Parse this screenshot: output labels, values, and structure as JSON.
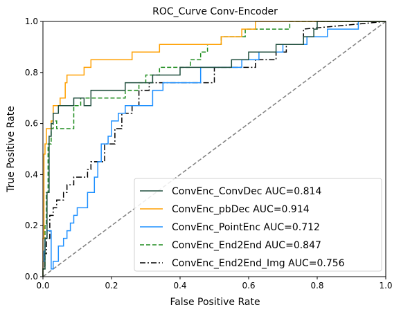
{
  "chart_data": {
    "type": "line",
    "title": "ROC_Curve Conv-Encoder",
    "xlabel": "False Positive Rate",
    "ylabel": "True Positive Rate",
    "xlim": [
      0.0,
      1.0
    ],
    "ylim": [
      0.0,
      1.0
    ],
    "xticks": [
      "0.0",
      "0.2",
      "0.4",
      "0.6",
      "0.8",
      "1.0"
    ],
    "yticks": [
      "0.0",
      "0.2",
      "0.4",
      "0.6",
      "0.8",
      "1.0"
    ],
    "grid": false,
    "legend_position": "lower-right",
    "series": [
      {
        "name": "ConvEnc_ConvDec AUC=0.814",
        "color": "#1f4e3d",
        "dash": "solid",
        "points": [
          [
            0,
            0
          ],
          [
            0,
            0.03
          ],
          [
            0.006,
            0.03
          ],
          [
            0.006,
            0.15
          ],
          [
            0.012,
            0.15
          ],
          [
            0.012,
            0.33
          ],
          [
            0.018,
            0.33
          ],
          [
            0.018,
            0.55
          ],
          [
            0.024,
            0.55
          ],
          [
            0.024,
            0.6
          ],
          [
            0.03,
            0.6
          ],
          [
            0.03,
            0.64
          ],
          [
            0.045,
            0.64
          ],
          [
            0.045,
            0.67
          ],
          [
            0.09,
            0.67
          ],
          [
            0.09,
            0.7
          ],
          [
            0.12,
            0.7
          ],
          [
            0.12,
            0.67
          ],
          [
            0.14,
            0.67
          ],
          [
            0.14,
            0.73
          ],
          [
            0.24,
            0.73
          ],
          [
            0.24,
            0.76
          ],
          [
            0.32,
            0.76
          ],
          [
            0.32,
            0.79
          ],
          [
            0.4,
            0.79
          ],
          [
            0.4,
            0.82
          ],
          [
            0.55,
            0.82
          ],
          [
            0.55,
            0.85
          ],
          [
            0.6,
            0.85
          ],
          [
            0.6,
            0.88
          ],
          [
            0.68,
            0.88
          ],
          [
            0.68,
            0.91
          ],
          [
            0.76,
            0.91
          ],
          [
            0.76,
            0.94
          ],
          [
            0.79,
            0.94
          ],
          [
            0.79,
            0.97
          ],
          [
            0.8,
            0.97
          ],
          [
            0.8,
            1.0
          ],
          [
            1.0,
            1.0
          ]
        ]
      },
      {
        "name": "ConvEnc_pbDec AUC=0.914",
        "color": "#ff9f00",
        "dash": "solid",
        "points": [
          [
            0,
            0
          ],
          [
            0,
            0.15
          ],
          [
            0.003,
            0.15
          ],
          [
            0.003,
            0.48
          ],
          [
            0.006,
            0.48
          ],
          [
            0.006,
            0.52
          ],
          [
            0.01,
            0.52
          ],
          [
            0.01,
            0.58
          ],
          [
            0.024,
            0.58
          ],
          [
            0.024,
            0.61
          ],
          [
            0.03,
            0.61
          ],
          [
            0.03,
            0.67
          ],
          [
            0.05,
            0.67
          ],
          [
            0.05,
            0.7
          ],
          [
            0.065,
            0.7
          ],
          [
            0.065,
            0.76
          ],
          [
            0.07,
            0.76
          ],
          [
            0.07,
            0.79
          ],
          [
            0.12,
            0.79
          ],
          [
            0.12,
            0.82
          ],
          [
            0.14,
            0.82
          ],
          [
            0.14,
            0.85
          ],
          [
            0.26,
            0.85
          ],
          [
            0.26,
            0.88
          ],
          [
            0.34,
            0.88
          ],
          [
            0.34,
            0.91
          ],
          [
            0.52,
            0.91
          ],
          [
            0.52,
            0.94
          ],
          [
            0.58,
            0.94
          ],
          [
            0.58,
            0.97
          ],
          [
            0.62,
            0.97
          ],
          [
            0.62,
            1.0
          ],
          [
            1.0,
            1.0
          ]
        ]
      },
      {
        "name": "ConvEnc_PointEnc AUC=0.712",
        "color": "#1e90ff",
        "dash": "solid",
        "points": [
          [
            0,
            0
          ],
          [
            0,
            0.06
          ],
          [
            0.003,
            0.06
          ],
          [
            0.003,
            0.1
          ],
          [
            0.006,
            0.1
          ],
          [
            0.006,
            0.15
          ],
          [
            0.012,
            0.15
          ],
          [
            0.012,
            0.18
          ],
          [
            0.024,
            0.18
          ],
          [
            0.024,
            0.03
          ],
          [
            0.03,
            0.03
          ],
          [
            0.03,
            0.06
          ],
          [
            0.045,
            0.06
          ],
          [
            0.045,
            0.12
          ],
          [
            0.06,
            0.12
          ],
          [
            0.06,
            0.15
          ],
          [
            0.07,
            0.15
          ],
          [
            0.07,
            0.18
          ],
          [
            0.08,
            0.18
          ],
          [
            0.08,
            0.21
          ],
          [
            0.09,
            0.21
          ],
          [
            0.09,
            0.24
          ],
          [
            0.1,
            0.24
          ],
          [
            0.1,
            0.27
          ],
          [
            0.13,
            0.27
          ],
          [
            0.13,
            0.33
          ],
          [
            0.15,
            0.33
          ],
          [
            0.15,
            0.39
          ],
          [
            0.16,
            0.39
          ],
          [
            0.16,
            0.45
          ],
          [
            0.17,
            0.45
          ],
          [
            0.17,
            0.52
          ],
          [
            0.19,
            0.52
          ],
          [
            0.19,
            0.55
          ],
          [
            0.2,
            0.55
          ],
          [
            0.2,
            0.61
          ],
          [
            0.22,
            0.61
          ],
          [
            0.22,
            0.64
          ],
          [
            0.24,
            0.64
          ],
          [
            0.24,
            0.67
          ],
          [
            0.32,
            0.67
          ],
          [
            0.32,
            0.73
          ],
          [
            0.35,
            0.73
          ],
          [
            0.35,
            0.76
          ],
          [
            0.46,
            0.76
          ],
          [
            0.46,
            0.82
          ],
          [
            0.58,
            0.82
          ],
          [
            0.58,
            0.85
          ],
          [
            0.63,
            0.85
          ],
          [
            0.63,
            0.88
          ],
          [
            0.7,
            0.88
          ],
          [
            0.7,
            0.91
          ],
          [
            0.77,
            0.91
          ],
          [
            0.77,
            0.94
          ],
          [
            0.83,
            0.94
          ],
          [
            0.83,
            0.97
          ],
          [
            0.92,
            0.97
          ],
          [
            0.92,
            1.0
          ],
          [
            1.0,
            1.0
          ]
        ]
      },
      {
        "name": "ConvEnc_End2End AUC=0.847",
        "color": "#1e8c1e",
        "dash": "dashed",
        "points": [
          [
            0,
            0
          ],
          [
            0,
            0.03
          ],
          [
            0.006,
            0.03
          ],
          [
            0.006,
            0.2
          ],
          [
            0.01,
            0.2
          ],
          [
            0.01,
            0.33
          ],
          [
            0.015,
            0.33
          ],
          [
            0.015,
            0.52
          ],
          [
            0.024,
            0.52
          ],
          [
            0.024,
            0.58
          ],
          [
            0.03,
            0.58
          ],
          [
            0.03,
            0.61
          ],
          [
            0.04,
            0.61
          ],
          [
            0.04,
            0.58
          ],
          [
            0.09,
            0.58
          ],
          [
            0.09,
            0.67
          ],
          [
            0.11,
            0.67
          ],
          [
            0.11,
            0.7
          ],
          [
            0.24,
            0.7
          ],
          [
            0.24,
            0.73
          ],
          [
            0.28,
            0.73
          ],
          [
            0.28,
            0.76
          ],
          [
            0.3,
            0.76
          ],
          [
            0.3,
            0.79
          ],
          [
            0.34,
            0.79
          ],
          [
            0.34,
            0.82
          ],
          [
            0.43,
            0.82
          ],
          [
            0.43,
            0.85
          ],
          [
            0.46,
            0.85
          ],
          [
            0.46,
            0.88
          ],
          [
            0.48,
            0.88
          ],
          [
            0.48,
            0.91
          ],
          [
            0.52,
            0.91
          ],
          [
            0.52,
            0.94
          ],
          [
            0.59,
            0.94
          ],
          [
            0.59,
            0.97
          ],
          [
            0.72,
            0.97
          ],
          [
            0.72,
            1.0
          ],
          [
            1.0,
            1.0
          ]
        ]
      },
      {
        "name": "ConvEnc_End2End_Img AUC=0.756",
        "color": "#000000",
        "dash": "dashdot",
        "points": [
          [
            0,
            0
          ],
          [
            0,
            0.03
          ],
          [
            0.005,
            0.03
          ],
          [
            0.005,
            0.09
          ],
          [
            0.01,
            0.09
          ],
          [
            0.01,
            0.15
          ],
          [
            0.02,
            0.15
          ],
          [
            0.02,
            0.24
          ],
          [
            0.03,
            0.24
          ],
          [
            0.03,
            0.27
          ],
          [
            0.04,
            0.27
          ],
          [
            0.04,
            0.3
          ],
          [
            0.06,
            0.3
          ],
          [
            0.06,
            0.33
          ],
          [
            0.07,
            0.33
          ],
          [
            0.07,
            0.36
          ],
          [
            0.09,
            0.36
          ],
          [
            0.09,
            0.39
          ],
          [
            0.13,
            0.39
          ],
          [
            0.13,
            0.42
          ],
          [
            0.14,
            0.42
          ],
          [
            0.14,
            0.45
          ],
          [
            0.18,
            0.45
          ],
          [
            0.18,
            0.52
          ],
          [
            0.21,
            0.52
          ],
          [
            0.21,
            0.58
          ],
          [
            0.23,
            0.58
          ],
          [
            0.23,
            0.64
          ],
          [
            0.26,
            0.64
          ],
          [
            0.26,
            0.67
          ],
          [
            0.28,
            0.67
          ],
          [
            0.28,
            0.73
          ],
          [
            0.31,
            0.73
          ],
          [
            0.31,
            0.76
          ],
          [
            0.5,
            0.76
          ],
          [
            0.5,
            0.82
          ],
          [
            0.62,
            0.82
          ],
          [
            0.62,
            0.85
          ],
          [
            0.68,
            0.85
          ],
          [
            0.68,
            0.88
          ],
          [
            0.71,
            0.88
          ],
          [
            0.71,
            0.91
          ],
          [
            0.76,
            0.91
          ],
          [
            0.76,
            0.97
          ],
          [
            1.0,
            1.0
          ]
        ]
      },
      {
        "name": "",
        "color": "#808080",
        "dash": "dashed",
        "points": [
          [
            0,
            0
          ],
          [
            1,
            1
          ]
        ]
      }
    ]
  }
}
